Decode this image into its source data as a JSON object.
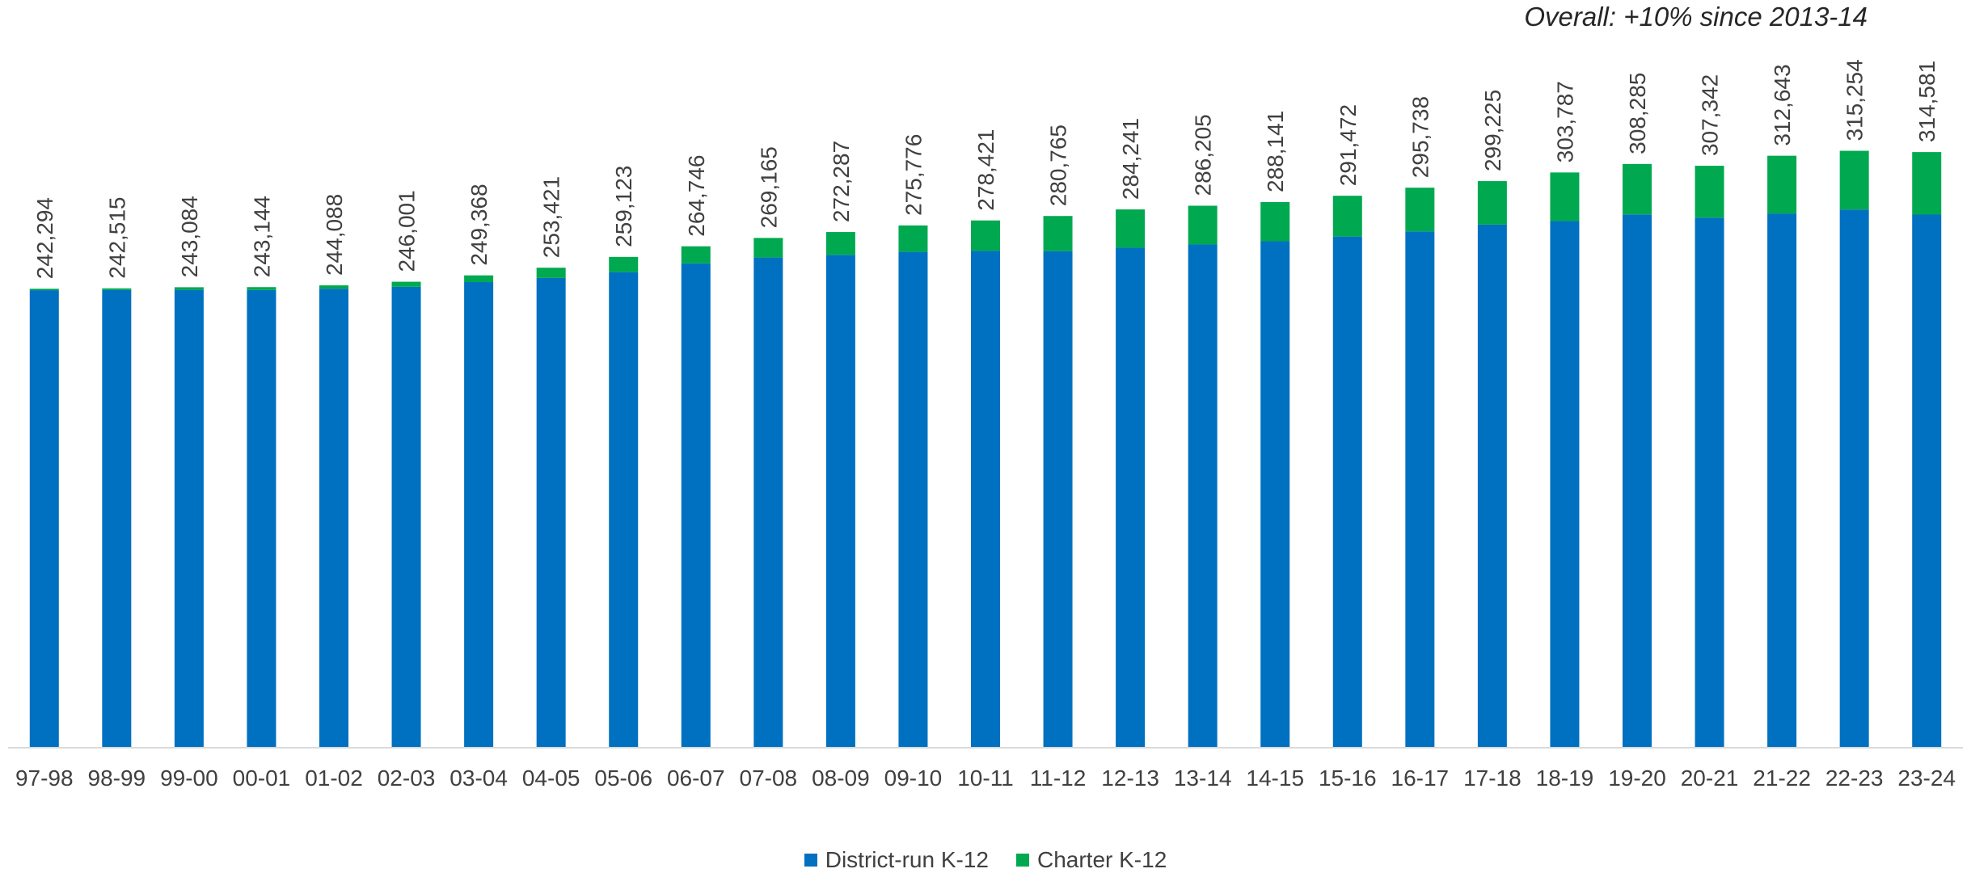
{
  "chart_data": {
    "type": "bar",
    "stacked": true,
    "annotation": "Overall: +10% since 2013-14",
    "categories": [
      "97-98",
      "98-99",
      "99-00",
      "00-01",
      "01-02",
      "02-03",
      "03-04",
      "04-05",
      "05-06",
      "06-07",
      "07-08",
      "08-09",
      "09-10",
      "10-11",
      "11-12",
      "12-13",
      "13-14",
      "14-15",
      "15-16",
      "16-17",
      "17-18",
      "18-19",
      "19-20",
      "20-21",
      "21-22",
      "22-23",
      "23-24"
    ],
    "totals": [
      242294,
      242515,
      243084,
      243144,
      244088,
      246001,
      249368,
      253421,
      259123,
      264746,
      269165,
      272287,
      275776,
      278421,
      280765,
      284241,
      286205,
      288141,
      291472,
      295738,
      299225,
      303787,
      308285,
      307342,
      312643,
      315254,
      314581
    ],
    "total_labels": [
      "242,294",
      "242,515",
      "243,084",
      "243,144",
      "244,088",
      "246,001",
      "249,368",
      "253,421",
      "259,123",
      "264,746",
      "269,165",
      "272,287",
      "275,776",
      "278,421",
      "280,765",
      "284,241",
      "286,205",
      "288,141",
      "291,472",
      "295,738",
      "299,225",
      "303,787",
      "308,285",
      "307,342",
      "312,643",
      "315,254",
      "314,581"
    ],
    "series": [
      {
        "name": "District-run K-12",
        "color": "#0070c0",
        "values": [
          241500,
          241600,
          241700,
          241600,
          242300,
          243300,
          245800,
          248000,
          251100,
          255700,
          258800,
          260200,
          261800,
          262300,
          262200,
          264000,
          265700,
          267400,
          269900,
          272600,
          276200,
          278100,
          281600,
          279900,
          282100,
          284200,
          281500
        ]
      },
      {
        "name": "Charter K-12",
        "color": "#00a94f",
        "values": [
          794,
          915,
          1384,
          1544,
          1788,
          2701,
          3568,
          5421,
          8023,
          9046,
          10365,
          12087,
          13976,
          16121,
          18565,
          20241,
          20505,
          20741,
          21572,
          23138,
          23025,
          25687,
          26685,
          27442,
          30543,
          31054,
          33081
        ]
      }
    ],
    "ylim": [
      0,
      395000
    ],
    "grid": false,
    "legend_position": "bottom"
  }
}
